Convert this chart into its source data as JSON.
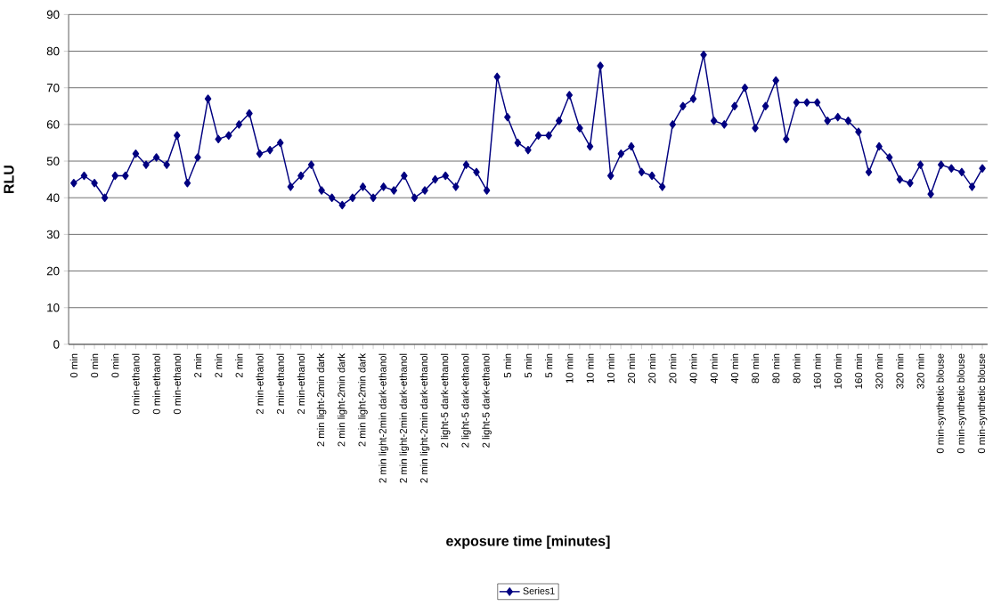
{
  "chart_data": {
    "type": "line",
    "xlabel": "exposure time [minutes]",
    "ylabel": "RLU",
    "categories": [
      "0 min",
      null,
      "0 min",
      null,
      "0 min",
      null,
      "0 min-ethanol",
      null,
      "0 min-ethanol",
      null,
      "0 min-ethanol",
      null,
      "2 min",
      null,
      "2 min",
      null,
      "2 min",
      null,
      "2 min-ethanol",
      null,
      "2 min-ethanol",
      null,
      "2 min-ethanol",
      null,
      "2 min light-2min dark",
      null,
      "2 min light-2min dark",
      null,
      "2 min light-2min dark",
      null,
      "2 min light-2min dark-ethanol",
      null,
      "2 min light-2min dark-ethanol",
      null,
      "2 min light-2min dark-ethanol",
      null,
      "2 light-5 dark-ethanol",
      null,
      "2 light-5 dark-ethanol",
      null,
      "2 light-5 dark-ethanol",
      null,
      "5 min",
      null,
      "5 min",
      null,
      "5 min",
      null,
      "10 min",
      null,
      "10 min",
      null,
      "10 min",
      null,
      "20 min",
      null,
      "20 min",
      null,
      "20 min",
      null,
      "40 min",
      null,
      "40 min",
      null,
      "40 min",
      null,
      "80 min",
      null,
      "80 min",
      null,
      "80 min",
      null,
      "160 min",
      null,
      "160 min",
      null,
      "160 min",
      null,
      "320 min",
      null,
      "320 min",
      null,
      "320 min",
      null,
      "0 min-synthetic blouse",
      null,
      "0 min-synthetic blouse",
      null,
      "0 min-synthetic blouse"
    ],
    "series": [
      {
        "name": "Series1",
        "color": "#000080",
        "values": [
          44,
          46,
          44,
          40,
          46,
          46,
          52,
          49,
          51,
          49,
          57,
          44,
          51,
          67,
          56,
          57,
          60,
          63,
          52,
          53,
          55,
          43,
          46,
          49,
          42,
          40,
          38,
          40,
          43,
          40,
          43,
          42,
          46,
          40,
          42,
          45,
          46,
          43,
          49,
          47,
          42,
          73,
          62,
          55,
          53,
          57,
          57,
          61,
          68,
          59,
          54,
          76,
          46,
          52,
          54,
          47,
          46,
          43,
          60,
          65,
          67,
          79,
          61,
          60,
          65,
          70,
          59,
          65,
          72,
          56,
          66,
          66,
          66,
          61,
          62,
          61,
          58,
          47,
          54,
          51,
          45,
          44,
          49,
          41,
          49,
          48,
          47,
          43,
          48
        ]
      }
    ],
    "ylim": [
      0,
      90
    ],
    "yticks": [
      0,
      10,
      20,
      30,
      40,
      50,
      60,
      70,
      80,
      90
    ],
    "grid": "y",
    "legend": "bottom",
    "marker": "diamond",
    "line_style": "solid"
  }
}
